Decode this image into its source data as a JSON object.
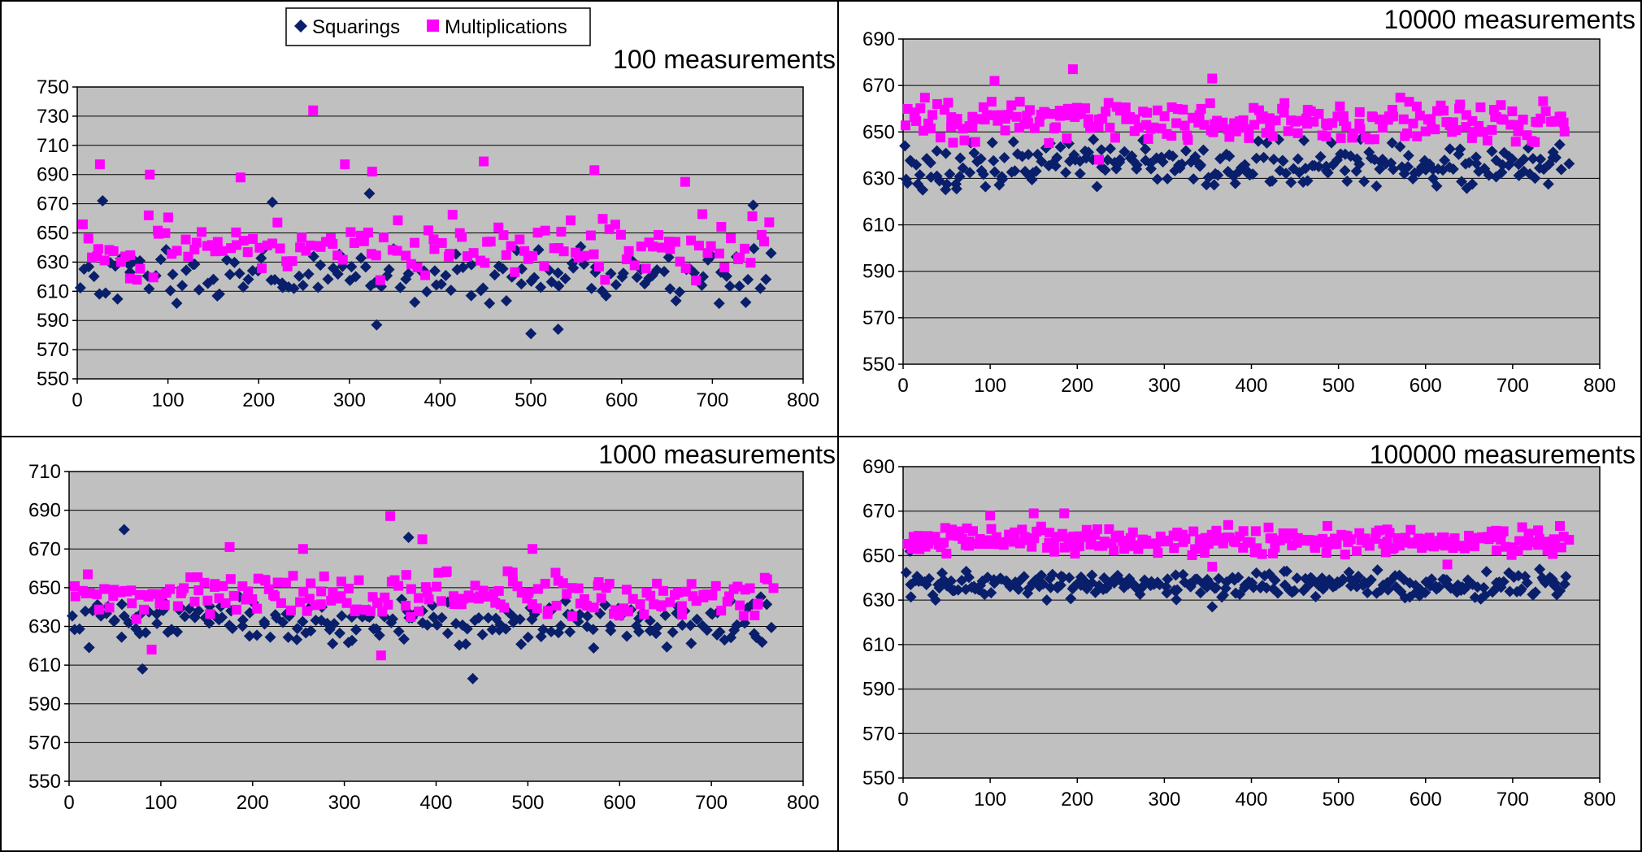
{
  "colors": {
    "squarings": "#0a1f6b",
    "multiplications": "#ff00ff",
    "plot_bg": "#c0c0c0",
    "grid": "#000000",
    "divider": "#000000"
  },
  "legend": {
    "squarings_label": "Squarings",
    "multiplications_label": "Multiplications",
    "placement": "top-left panel, top-center",
    "squarings_marker": "diamond-icon",
    "multiplications_marker": "square-icon"
  },
  "chart_data": [
    {
      "id": "p100",
      "type": "scatter",
      "title": "100 measurements",
      "xlim": [
        0,
        800
      ],
      "xticks": [
        "0",
        "100",
        "200",
        "300",
        "400",
        "500",
        "600",
        "700",
        "800"
      ],
      "ylim": [
        550,
        750
      ],
      "yticks": [
        "550",
        "570",
        "590",
        "610",
        "630",
        "650",
        "670",
        "690",
        "710",
        "730",
        "750"
      ],
      "grid": "horizontal",
      "generation": {
        "n": 150,
        "seed": 11,
        "xmax": 762
      },
      "series": [
        {
          "name": "Squarings",
          "marker": "diamond",
          "mean": 621,
          "spread": 20,
          "outliers": [
            [
              28,
              672
            ],
            [
              330,
              587
            ],
            [
              500,
              581
            ],
            [
              530,
              584
            ],
            [
              215,
              671
            ],
            [
              745,
              669
            ],
            [
              322,
              677
            ]
          ]
        },
        {
          "name": "Multiplications",
          "marker": "square",
          "mean": 641,
          "spread": 24,
          "outliers": [
            [
              260,
              734
            ],
            [
              448,
              699
            ],
            [
              25,
              697
            ],
            [
              295,
              697
            ],
            [
              325,
              692
            ],
            [
              570,
              693
            ],
            [
              80,
              690
            ],
            [
              180,
              688
            ],
            [
              670,
              685
            ]
          ]
        }
      ]
    },
    {
      "id": "p10000",
      "type": "scatter",
      "title": "10000 measurements",
      "xlim": [
        0,
        800
      ],
      "xticks": [
        "0",
        "100",
        "200",
        "300",
        "400",
        "500",
        "600",
        "700",
        "800"
      ],
      "ylim": [
        550,
        690
      ],
      "yticks": [
        "550",
        "570",
        "590",
        "610",
        "630",
        "650",
        "670",
        "690"
      ],
      "grid": "horizontal",
      "generation": {
        "n": 240,
        "seed": 23,
        "xmax": 762
      },
      "series": [
        {
          "name": "Squarings",
          "marker": "diamond",
          "mean": 636,
          "spread": 11,
          "outliers": [
            [
              2,
              644
            ],
            [
              5,
              628
            ]
          ]
        },
        {
          "name": "Multiplications",
          "marker": "square",
          "mean": 655,
          "spread": 10,
          "outliers": [
            [
              195,
              677
            ],
            [
              355,
              673
            ],
            [
              105,
              672
            ],
            [
              225,
              638
            ]
          ]
        }
      ]
    },
    {
      "id": "p1000",
      "type": "scatter",
      "title": "1000 measurements",
      "xlim": [
        0,
        800
      ],
      "xticks": [
        "0",
        "100",
        "200",
        "300",
        "400",
        "500",
        "600",
        "700",
        "800"
      ],
      "ylim": [
        550,
        710
      ],
      "yticks": [
        "550",
        "570",
        "590",
        "610",
        "630",
        "650",
        "670",
        "690",
        "710"
      ],
      "grid": "horizontal",
      "generation": {
        "n": 200,
        "seed": 37,
        "xmax": 765
      },
      "series": [
        {
          "name": "Squarings",
          "marker": "diamond",
          "mean": 632,
          "spread": 14,
          "outliers": [
            [
              60,
              680
            ],
            [
              370,
              676
            ],
            [
              440,
              603
            ],
            [
              80,
              608
            ]
          ]
        },
        {
          "name": "Multiplications",
          "marker": "square",
          "mean": 646,
          "spread": 13,
          "outliers": [
            [
              350,
              687
            ],
            [
              385,
              675
            ],
            [
              175,
              671
            ],
            [
              255,
              670
            ],
            [
              505,
              670
            ],
            [
              90,
              618
            ],
            [
              340,
              615
            ]
          ]
        }
      ]
    },
    {
      "id": "p100000",
      "type": "scatter",
      "title": "100000 measurements",
      "xlim": [
        0,
        800
      ],
      "xticks": [
        "0",
        "100",
        "200",
        "300",
        "400",
        "500",
        "600",
        "700",
        "800"
      ],
      "ylim": [
        550,
        690
      ],
      "yticks": [
        "550",
        "570",
        "590",
        "610",
        "630",
        "650",
        "670",
        "690"
      ],
      "grid": "horizontal",
      "generation": {
        "n": 260,
        "seed": 53,
        "xmax": 762
      },
      "series": [
        {
          "name": "Squarings",
          "marker": "diamond",
          "mean": 637,
          "spread": 7,
          "outliers": [
            [
              355,
              627
            ],
            [
              8,
              652
            ],
            [
              165,
              630
            ]
          ]
        },
        {
          "name": "Multiplications",
          "marker": "square",
          "mean": 657,
          "spread": 7,
          "outliers": [
            [
              150,
              669
            ],
            [
              185,
              669
            ],
            [
              100,
              668
            ],
            [
              355,
              645
            ],
            [
              625,
              646
            ]
          ]
        }
      ]
    }
  ]
}
